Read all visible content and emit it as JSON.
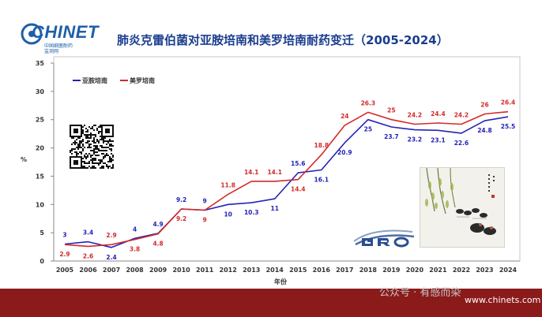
{
  "header": {
    "logo_text": "CHINET",
    "logo_sub1": "中国细菌耐药",
    "logo_sub2": "监测网",
    "title": "肺炎克雷伯菌对亚胺培南和美罗培南耐药变迁（2005-2024）"
  },
  "footer": {
    "watermark": "公众号 · 有感而染",
    "url": "www.chinets.com"
  },
  "chart_data": {
    "type": "line",
    "title": "肺炎克雷伯菌对亚胺培南和美罗培南耐药变迁（2005-2024）",
    "xlabel": "年份",
    "ylabel": "%",
    "ylim": [
      0,
      35
    ],
    "yticks": [
      0,
      5,
      10,
      15,
      20,
      25,
      30,
      35
    ],
    "categories": [
      "2005",
      "2006",
      "2007",
      "2008",
      "2009",
      "2010",
      "2011",
      "2012",
      "2013",
      "2014",
      "2015",
      "2016",
      "2017",
      "2018",
      "2019",
      "2020",
      "2021",
      "2022",
      "2023",
      "2024"
    ],
    "legend_position": "top-left",
    "grid": false,
    "series": [
      {
        "name": "亚胺培南",
        "color": "#2323b8",
        "values": [
          3,
          3.4,
          2.4,
          4,
          4.9,
          9.2,
          9,
          10,
          10.3,
          11,
          15.6,
          16.1,
          20.9,
          25,
          23.7,
          23.2,
          23.1,
          22.6,
          24.8,
          25.5
        ]
      },
      {
        "name": "美罗培南",
        "color": "#d42a2a",
        "values": [
          2.9,
          2.6,
          2.9,
          3.8,
          4.8,
          9.2,
          9,
          11.8,
          14.1,
          14.1,
          14.4,
          18.8,
          24,
          26.3,
          25,
          24.2,
          24.4,
          24.2,
          26,
          26.4
        ]
      }
    ],
    "value_labels": {
      "亚胺培南": [
        "3",
        "3.4",
        "2.4",
        "4",
        "4.9",
        "9.2",
        "9",
        "10",
        "10.3",
        "11",
        "15.6",
        "16.1",
        "20.9",
        "25",
        "23.7",
        "23.2",
        "23.1",
        "22.6",
        "24.8",
        "25.5"
      ],
      "美罗培南": [
        "2.9",
        "2.6",
        "2.9",
        "3.8",
        "4.8",
        "9.2",
        "9",
        "11.8",
        "14.1",
        "14.1",
        "14.4",
        "18.8",
        "24",
        "26.3",
        "25",
        "24.2",
        "24.4",
        "24.2",
        "26",
        "26.4"
      ]
    }
  }
}
